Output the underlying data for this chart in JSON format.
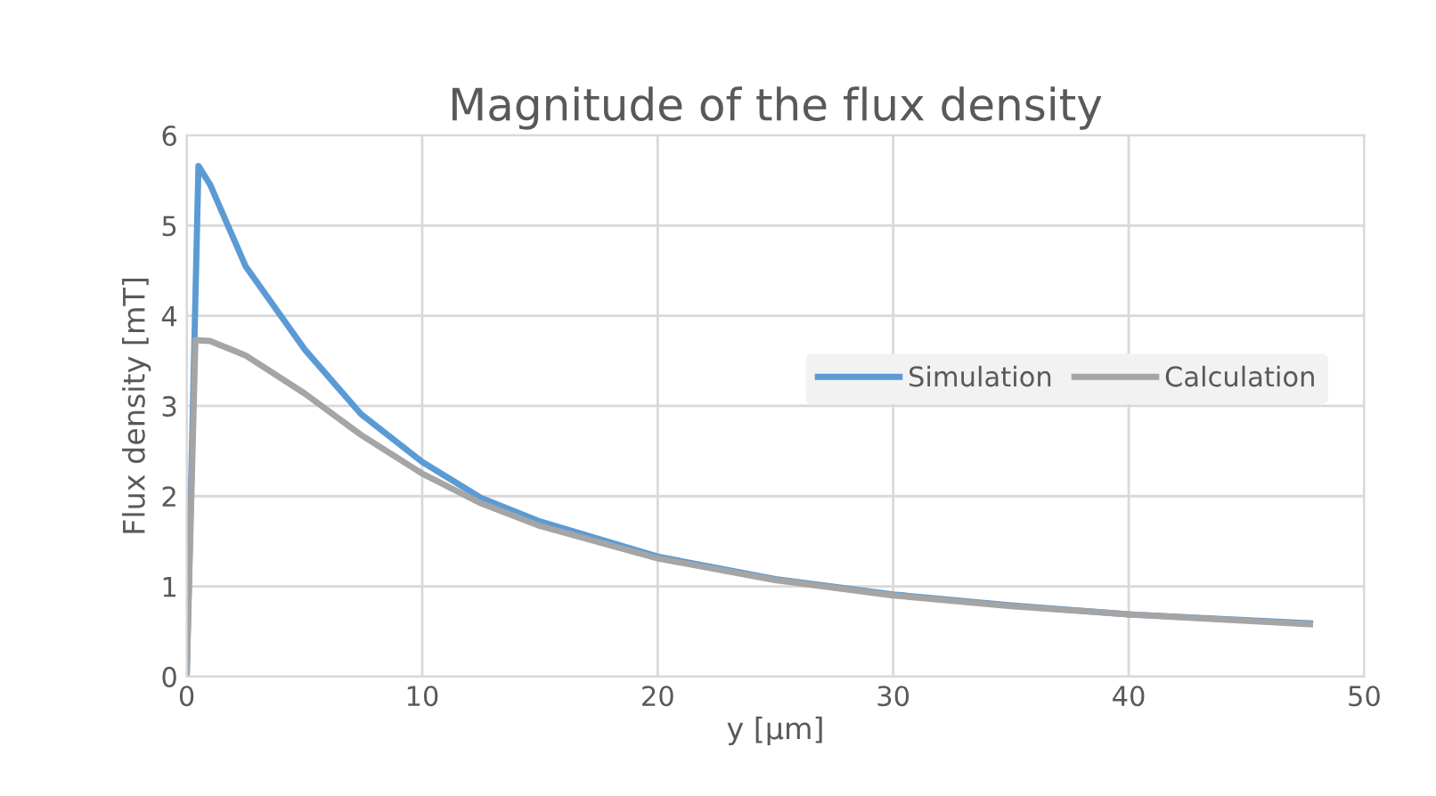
{
  "chart_data": {
    "type": "line",
    "title": "Magnitude of the flux density",
    "xlabel": "y [µm]",
    "ylabel": "Flux density [mT]",
    "xlim": [
      0,
      50
    ],
    "xticks": [
      0,
      10,
      20,
      30,
      40,
      50
    ],
    "ylim": [
      0,
      6
    ],
    "yticks": [
      0,
      1,
      2,
      3,
      4,
      5,
      6
    ],
    "grid": true,
    "legend": "right",
    "marker": "none",
    "line_style": "solid",
    "series": [
      {
        "name": "Simulation",
        "color": "#5b9bd5",
        "x": [
          0,
          0.5,
          1,
          2.5,
          5,
          7.4,
          10,
          12.5,
          15,
          20,
          25,
          30,
          35,
          40,
          47.7
        ],
        "values": [
          0,
          5.66,
          5.45,
          4.55,
          3.63,
          2.91,
          2.38,
          1.98,
          1.72,
          1.33,
          1.08,
          0.91,
          0.79,
          0.69,
          0.59
        ]
      },
      {
        "name": "Calculation",
        "color": "#a5a5a5",
        "x": [
          0,
          0.37,
          1,
          2.5,
          5,
          7.4,
          10,
          12.5,
          15,
          20,
          25,
          30,
          35,
          40,
          47.7
        ],
        "values": [
          0,
          3.73,
          3.72,
          3.56,
          3.14,
          2.68,
          2.25,
          1.92,
          1.67,
          1.31,
          1.07,
          0.9,
          0.78,
          0.69,
          0.58
        ]
      }
    ]
  }
}
